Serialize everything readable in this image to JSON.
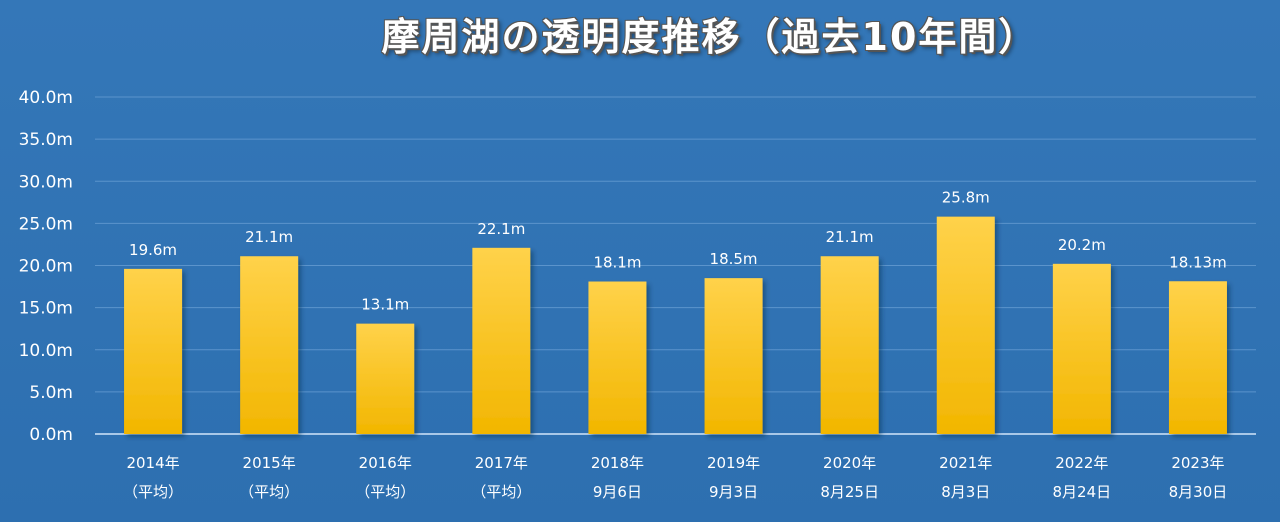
{
  "chart_data": {
    "type": "bar",
    "title": "摩周湖の透明度推移（過去10年間）",
    "xlabel": "",
    "ylabel": "",
    "ylim": [
      0,
      40
    ],
    "yticks": [
      "0.0m",
      "5.0m",
      "10.0m",
      "15.0m",
      "20.0m",
      "25.0m",
      "30.0m",
      "35.0m",
      "40.0m"
    ],
    "ytick_values": [
      0,
      5,
      10,
      15,
      20,
      25,
      30,
      35,
      40
    ],
    "grid": true,
    "categories": [
      [
        "2014年",
        "（平均）"
      ],
      [
        "2015年",
        "（平均）"
      ],
      [
        "2016年",
        "（平均）"
      ],
      [
        "2017年",
        "（平均）"
      ],
      [
        "2018年",
        "9月6日"
      ],
      [
        "2019年",
        "9月3日"
      ],
      [
        "2020年",
        "8月25日"
      ],
      [
        "2021年",
        "8月3日"
      ],
      [
        "2022年",
        "8月24日"
      ],
      [
        "2023年",
        "8月30日"
      ]
    ],
    "values": [
      19.6,
      21.1,
      13.1,
      22.1,
      18.1,
      18.5,
      21.1,
      25.8,
      20.2,
      18.13
    ],
    "data_labels": [
      "19.6m",
      "21.1m",
      "13.1m",
      "22.1m",
      "18.1m",
      "18.5m",
      "21.1m",
      "25.8m",
      "20.2m",
      "18.13m"
    ],
    "colors": {
      "background": "#2f72b4",
      "bar_top": "#ffd24a",
      "bar_bottom": "#f2b600",
      "gridline": "#5b94cc",
      "axis": "#a9c8e8",
      "text": "#ffffff"
    }
  }
}
